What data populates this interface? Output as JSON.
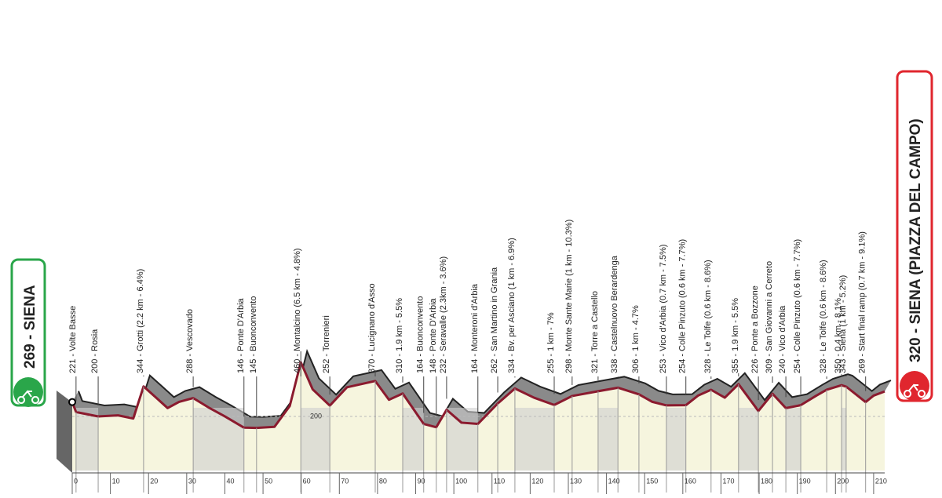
{
  "chart_data": {
    "type": "area",
    "start_label": "269 - SIENA",
    "finish_label": "320 - SIENA (PIAZZA DEL CAMPO)",
    "xlim": [
      0,
      212.9
    ],
    "xticks": [
      0,
      10,
      20,
      30,
      40,
      50,
      60,
      70,
      80,
      90,
      100,
      110,
      120,
      130,
      140,
      150,
      160,
      170,
      180,
      190,
      200,
      210
    ],
    "ylim": [
      -60,
      2200
    ],
    "yticks": [
      200
    ],
    "line_color": "#8b1a2e",
    "fill_color": "#f6f5de",
    "depth_color": "#8a8a8a",
    "profile": {
      "x": [
        0,
        1,
        6.8,
        12,
        16,
        18.7,
        22,
        25,
        28,
        31.7,
        36,
        40,
        45,
        48.3,
        53,
        57,
        59.9,
        63,
        67.5,
        72,
        79.4,
        83,
        86.6,
        92.1,
        95.4,
        98.1,
        102,
        106.3,
        111.5,
        116,
        121,
        126.3,
        131,
        137.8,
        143,
        148.5,
        152,
        155.7,
        160.8,
        164,
        167.4,
        171,
        174.6,
        179.8,
        183.5,
        187,
        190.9,
        195,
        197.7,
        201.6,
        202.8,
        207.9,
        210,
        212.9
      ],
      "values": [
        269,
        221,
        200,
        205,
        190,
        344,
        290,
        240,
        270,
        288,
        240,
        200,
        146,
        145,
        150,
        250,
        460,
        330,
        252,
        340,
        370,
        280,
        310,
        164,
        148,
        232,
        170,
        164,
        262,
        334,
        290,
        255,
        298,
        321,
        338,
        306,
        270,
        253,
        254,
        300,
        328,
        290,
        355,
        226,
        309,
        240,
        254,
        300,
        328,
        350,
        343,
        269,
        300,
        320
      ]
    },
    "waypoints": [
      {
        "label": "221 - Volte Basse",
        "km": 1
      },
      {
        "label": "200 - Rosia",
        "km": 6.8
      },
      {
        "label": "344 - Grotti (2.2 km - 6.4%)",
        "km": 18.7
      },
      {
        "label": "288 - Vescovado",
        "km": 31.7
      },
      {
        "label": "146 - Ponte D'Arbia",
        "km": 45
      },
      {
        "label": "145 - Buonconvento",
        "km": 48.3
      },
      {
        "label": "460 - Montalcino (6.5 km - 4.8%)",
        "km": 59.9
      },
      {
        "label": "252 - Torrenieri",
        "km": 67.5
      },
      {
        "label": "370 - Lucignano d'Asso",
        "km": 79.4
      },
      {
        "label": "310 - 1.9 km - 5.5%",
        "km": 86.6
      },
      {
        "label": "164 - Buonconvento",
        "km": 92.1
      },
      {
        "label": "148 - Ponte D'Arbia",
        "km": 95.4
      },
      {
        "label": "232 - Seravalle (2.3km - 3.6%)",
        "km": 98.1
      },
      {
        "label": "164 - Monteroni d'Arbia",
        "km": 106.3
      },
      {
        "label": "262 - San Martino in Grania",
        "km": 111.5
      },
      {
        "label": "334 - Bv. per Asciano (1 km - 6.9%)",
        "km": 116
      },
      {
        "label": "255 - 1 km - 7%",
        "km": 126.3
      },
      {
        "label": "298 - Monte Sante Marie (1 km - 10.3%)",
        "km": 131
      },
      {
        "label": "321 - Torre a Castello",
        "km": 137.8
      },
      {
        "label": "338 - Castelnuovo Berardenga",
        "km": 143
      },
      {
        "label": "306 - 1 km - 4.7%",
        "km": 148.5
      },
      {
        "label": "253 - Vico d'Arbia (0.7 km - 7.5%)",
        "km": 155.7
      },
      {
        "label": "254 - Colle Pinzuto (0.6 km - 7.7%)",
        "km": 160.8
      },
      {
        "label": "328 - Le Tolfe (0.6 km - 8.6%)",
        "km": 167.4
      },
      {
        "label": "355 - 1.9 km - 5.5%",
        "km": 174.6
      },
      {
        "label": "226 - Ponte a Bozzone",
        "km": 179.8
      },
      {
        "label": "309 - San Giovanni a Cerreto",
        "km": 183.5
      },
      {
        "label": "240 - Vico d'Arbia",
        "km": 187
      },
      {
        "label": "254 - Colle Pinzuto (0.6 km - 7.7%)",
        "km": 190.9
      },
      {
        "label": "328 - Le Tolfe (0.6 km - 8.6%)",
        "km": 197.7
      },
      {
        "label": "350 - 0.4 km - 8.1%",
        "km": 201.6
      },
      {
        "label": "343 - Siena (1 km - 5.2%)",
        "km": 202.8
      },
      {
        "label": "269 - Start final ramp (0.7 km - 9.1%)",
        "km": 207.9
      }
    ]
  }
}
